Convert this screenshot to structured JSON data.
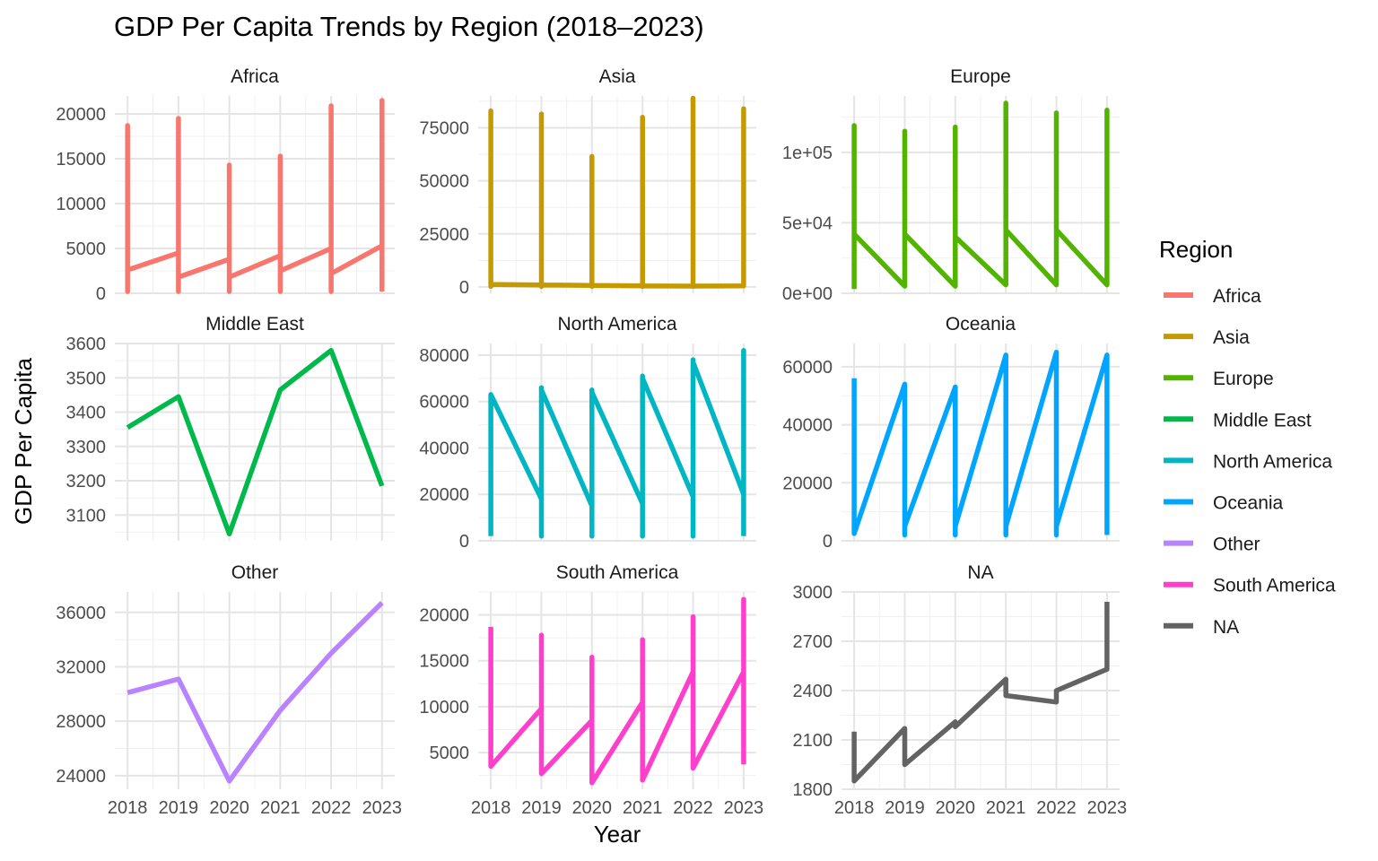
{
  "chart_data": {
    "type": "line",
    "title": "GDP Per Capita Trends by Region (2018–2023)",
    "xlabel": "Year",
    "ylabel": "GDP Per Capita",
    "legend": {
      "title": "Region",
      "position": "right"
    },
    "grid": true,
    "x_ticks": [
      "2018",
      "2019",
      "2020",
      "2021",
      "2022",
      "2023"
    ],
    "facets": [
      {
        "name": "Africa",
        "color": "#F8766D",
        "ylim": [
          0,
          22000
        ],
        "y_ticks": [
          0,
          5000,
          10000,
          15000,
          20000
        ],
        "y_tick_labels": [
          "0",
          "5000",
          "10000",
          "15000",
          "20000"
        ],
        "path": [
          [
            2018,
            2600
          ],
          [
            2018,
            18700
          ],
          [
            2018,
            200
          ],
          [
            2018,
            2600
          ],
          [
            2019,
            4500
          ],
          [
            2019,
            19500
          ],
          [
            2019,
            200
          ],
          [
            2019,
            1800
          ],
          [
            2020,
            3800
          ],
          [
            2020,
            14300
          ],
          [
            2020,
            200
          ],
          [
            2020,
            1800
          ],
          [
            2021,
            4200
          ],
          [
            2021,
            15300
          ],
          [
            2021,
            200
          ],
          [
            2021,
            2500
          ],
          [
            2022,
            5000
          ],
          [
            2022,
            20900
          ],
          [
            2022,
            200
          ],
          [
            2022,
            2200
          ],
          [
            2023,
            5300
          ],
          [
            2023,
            21500
          ],
          [
            2023,
            200
          ]
        ]
      },
      {
        "name": "Asia",
        "color": "#C49A00",
        "ylim": [
          -3000,
          90000
        ],
        "y_ticks": [
          0,
          25000,
          50000,
          75000
        ],
        "y_tick_labels": [
          "0",
          "25000",
          "50000",
          "75000"
        ],
        "path": [
          [
            2018,
            1200
          ],
          [
            2018,
            83000
          ],
          [
            2018,
            200
          ],
          [
            2018,
            1200
          ],
          [
            2019,
            900
          ],
          [
            2019,
            81500
          ],
          [
            2019,
            200
          ],
          [
            2019,
            900
          ],
          [
            2020,
            700
          ],
          [
            2020,
            61500
          ],
          [
            2020,
            200
          ],
          [
            2020,
            700
          ],
          [
            2021,
            500
          ],
          [
            2021,
            80000
          ],
          [
            2021,
            200
          ],
          [
            2021,
            500
          ],
          [
            2022,
            400
          ],
          [
            2022,
            89000
          ],
          [
            2022,
            200
          ],
          [
            2022,
            400
          ],
          [
            2023,
            500
          ],
          [
            2023,
            84000
          ],
          [
            2023,
            200
          ]
        ]
      },
      {
        "name": "Europe",
        "color": "#53B400",
        "ylim": [
          0,
          140000
        ],
        "y_ticks": [
          0,
          50000,
          100000
        ],
        "y_tick_labels": [
          "0e+00",
          "5e+04",
          "1e+05"
        ],
        "path": [
          [
            2018,
            3000
          ],
          [
            2018,
            119000
          ],
          [
            2018,
            42000
          ],
          [
            2019,
            5000
          ],
          [
            2019,
            115000
          ],
          [
            2019,
            42000
          ],
          [
            2020,
            5000
          ],
          [
            2020,
            118000
          ],
          [
            2020,
            40000
          ],
          [
            2021,
            6000
          ],
          [
            2021,
            135000
          ],
          [
            2021,
            45000
          ],
          [
            2022,
            6000
          ],
          [
            2022,
            128000
          ],
          [
            2022,
            45000
          ],
          [
            2023,
            6000
          ],
          [
            2023,
            130000
          ],
          [
            2023,
            10000
          ]
        ]
      },
      {
        "name": "Middle East",
        "color": "#00B94A",
        "ylim": [
          3025,
          3600
        ],
        "y_ticks": [
          3100,
          3200,
          3300,
          3400,
          3500,
          3600
        ],
        "y_tick_labels": [
          "3100",
          "3200",
          "3300",
          "3400",
          "3500",
          "3600"
        ],
        "path": [
          [
            2018,
            3355
          ],
          [
            2019,
            3445
          ],
          [
            2020,
            3045
          ],
          [
            2021,
            3465
          ],
          [
            2022,
            3580
          ],
          [
            2023,
            3185
          ]
        ]
      },
      {
        "name": "North America",
        "color": "#00B6C2",
        "ylim": [
          0,
          85000
        ],
        "y_ticks": [
          0,
          20000,
          40000,
          60000,
          80000
        ],
        "y_tick_labels": [
          "0",
          "20000",
          "40000",
          "60000",
          "80000"
        ],
        "path": [
          [
            2018,
            2000
          ],
          [
            2018,
            63000
          ],
          [
            2019,
            18000
          ],
          [
            2019,
            66000
          ],
          [
            2019,
            2000
          ],
          [
            2019,
            65000
          ],
          [
            2020,
            15000
          ],
          [
            2020,
            65000
          ],
          [
            2020,
            2000
          ],
          [
            2020,
            64000
          ],
          [
            2021,
            16000
          ],
          [
            2021,
            71000
          ],
          [
            2021,
            2000
          ],
          [
            2021,
            70000
          ],
          [
            2022,
            19000
          ],
          [
            2022,
            78000
          ],
          [
            2022,
            2000
          ],
          [
            2022,
            77000
          ],
          [
            2023,
            20000
          ],
          [
            2023,
            82000
          ],
          [
            2023,
            2000
          ]
        ]
      },
      {
        "name": "Oceania",
        "color": "#00A5FF",
        "ylim": [
          0,
          68000
        ],
        "y_ticks": [
          0,
          20000,
          40000,
          60000
        ],
        "y_tick_labels": [
          "0",
          "20000",
          "40000",
          "60000"
        ],
        "path": [
          [
            2018,
            56000
          ],
          [
            2018,
            2500
          ],
          [
            2019,
            54000
          ],
          [
            2019,
            2000
          ],
          [
            2019,
            5000
          ],
          [
            2020,
            53000
          ],
          [
            2020,
            2000
          ],
          [
            2020,
            5000
          ],
          [
            2021,
            64000
          ],
          [
            2021,
            2000
          ],
          [
            2021,
            5000
          ],
          [
            2022,
            65000
          ],
          [
            2022,
            2000
          ],
          [
            2022,
            5000
          ],
          [
            2023,
            64000
          ],
          [
            2023,
            2000
          ]
        ]
      },
      {
        "name": "Other",
        "color": "#B983FF",
        "ylim": [
          23000,
          37500
        ],
        "y_ticks": [
          24000,
          28000,
          32000,
          36000
        ],
        "y_tick_labels": [
          "24000",
          "28000",
          "32000",
          "36000"
        ],
        "path": [
          [
            2018,
            30100
          ],
          [
            2019,
            31100
          ],
          [
            2020,
            23600
          ],
          [
            2021,
            28800
          ],
          [
            2022,
            33000
          ],
          [
            2023,
            36700
          ]
        ]
      },
      {
        "name": "South America",
        "color": "#FF3FCB",
        "ylim": [
          1000,
          22500
        ],
        "y_ticks": [
          5000,
          10000,
          15000,
          20000
        ],
        "y_tick_labels": [
          "5000",
          "10000",
          "15000",
          "20000"
        ],
        "path": [
          [
            2018,
            18700
          ],
          [
            2018,
            3500
          ],
          [
            2019,
            9800
          ],
          [
            2019,
            17800
          ],
          [
            2019,
            2700
          ],
          [
            2020,
            8500
          ],
          [
            2020,
            15400
          ],
          [
            2020,
            1700
          ],
          [
            2021,
            10500
          ],
          [
            2021,
            17300
          ],
          [
            2021,
            2000
          ],
          [
            2022,
            13800
          ],
          [
            2022,
            19800
          ],
          [
            2022,
            3300
          ],
          [
            2023,
            13800
          ],
          [
            2023,
            21700
          ],
          [
            2023,
            3700
          ]
        ]
      },
      {
        "name": "NA",
        "color": "#636363",
        "ylim": [
          1800,
          3000
        ],
        "y_ticks": [
          1800,
          2100,
          2400,
          2700,
          3000
        ],
        "y_tick_labels": [
          "1800",
          "2100",
          "2400",
          "2700",
          "3000"
        ],
        "path": [
          [
            2018,
            2150
          ],
          [
            2018,
            1850
          ],
          [
            2019,
            2170
          ],
          [
            2019,
            1950
          ],
          [
            2020,
            2210
          ],
          [
            2020,
            2180
          ],
          [
            2021,
            2470
          ],
          [
            2021,
            2370
          ],
          [
            2022,
            2330
          ],
          [
            2022,
            2400
          ],
          [
            2023,
            2530
          ],
          [
            2023,
            2940
          ]
        ]
      }
    ]
  }
}
